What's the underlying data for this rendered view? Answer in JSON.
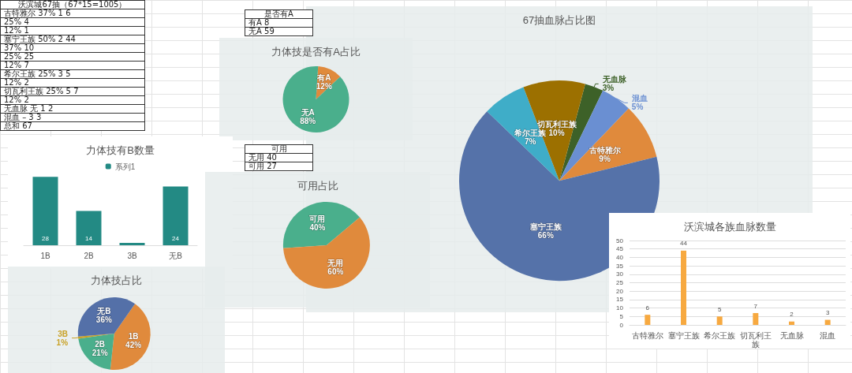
{
  "chart_data": [
    {
      "type": "other",
      "title": "沃滨城67抽（67*15=1005）",
      "annotations": [
        "古特雅尔 37% 1 6",
        "25% 4",
        "12% 1",
        "塞宁王族 50% 2 44",
        "37% 10",
        "25% 25",
        "12% 7",
        "希尔王族 25% 3 5",
        "12% 2",
        "切瓦利王族 25% 5 7",
        "12% 2",
        "无血脉 无 1 2",
        "混血 – 3 3",
        "总和 67"
      ]
    },
    {
      "type": "other",
      "title": "是否有A",
      "annotations": [
        "有A 8",
        "无A 59"
      ]
    },
    {
      "type": "pie",
      "title": "力体技是否有A占比",
      "categories": [
        "有A",
        "无A"
      ],
      "values": [
        12,
        88
      ],
      "value_labels": [
        "12%",
        "88%"
      ],
      "colors": [
        "#e08a3c",
        "#4aaf8c"
      ]
    },
    {
      "type": "pie",
      "title": "67抽血脉占比图",
      "categories": [
        "无血脉",
        "混血",
        "古特雅尔",
        "塞宁王族",
        "希尔王族",
        "切瓦利王族"
      ],
      "values": [
        3,
        5,
        9,
        66,
        7,
        10
      ],
      "value_labels": [
        "3%",
        "5%",
        "9%",
        "66%",
        "7%",
        "10%"
      ],
      "colors": [
        "#3d6128",
        "#6a8fd2",
        "#e08a3c",
        "#5572a9",
        "#3fadc8",
        "#9c7000"
      ]
    },
    {
      "type": "bar",
      "title": "力体技有B数量",
      "categories": [
        "1B",
        "2B",
        "3B",
        "无B"
      ],
      "legend": "top",
      "series": [
        {
          "name": "系列1",
          "color": "#238a84",
          "values": [
            28,
            14,
            1,
            24
          ],
          "value_labels": [
            "28",
            "14",
            null,
            "24"
          ]
        }
      ]
    },
    {
      "type": "other",
      "title": "可用",
      "annotations": [
        "无用 40",
        "可用 27"
      ]
    },
    {
      "type": "pie",
      "title": "可用占比",
      "categories": [
        "可用",
        "无用"
      ],
      "values": [
        40,
        60
      ],
      "value_labels": [
        "40%",
        "60%"
      ],
      "colors": [
        "#4aaf8c",
        "#e08a3c"
      ]
    },
    {
      "type": "pie",
      "title": "力体技占比",
      "categories": [
        "1B",
        "2B",
        "3B",
        "无B"
      ],
      "values": [
        42,
        21,
        1,
        36
      ],
      "value_labels": [
        "42%",
        "21%",
        "1%",
        "36%"
      ],
      "colors": [
        "#e08a3c",
        "#4aaf8c",
        "#c9a227",
        "#5470a8"
      ]
    },
    {
      "type": "bar",
      "title": "沃滨城各族血脉数量",
      "categories": [
        "古特雅尔",
        "塞宁王族",
        "希尔王族",
        "切瓦利王族",
        "无血脉",
        "混血"
      ],
      "values": [
        6,
        44,
        5,
        7,
        2,
        3
      ],
      "color": "#f7a940",
      "data_labels": true,
      "ylim": [
        0,
        50
      ],
      "yticks": [
        0,
        5,
        10,
        15,
        20,
        25,
        30,
        35,
        40,
        45,
        50
      ],
      "grid": "y"
    }
  ]
}
